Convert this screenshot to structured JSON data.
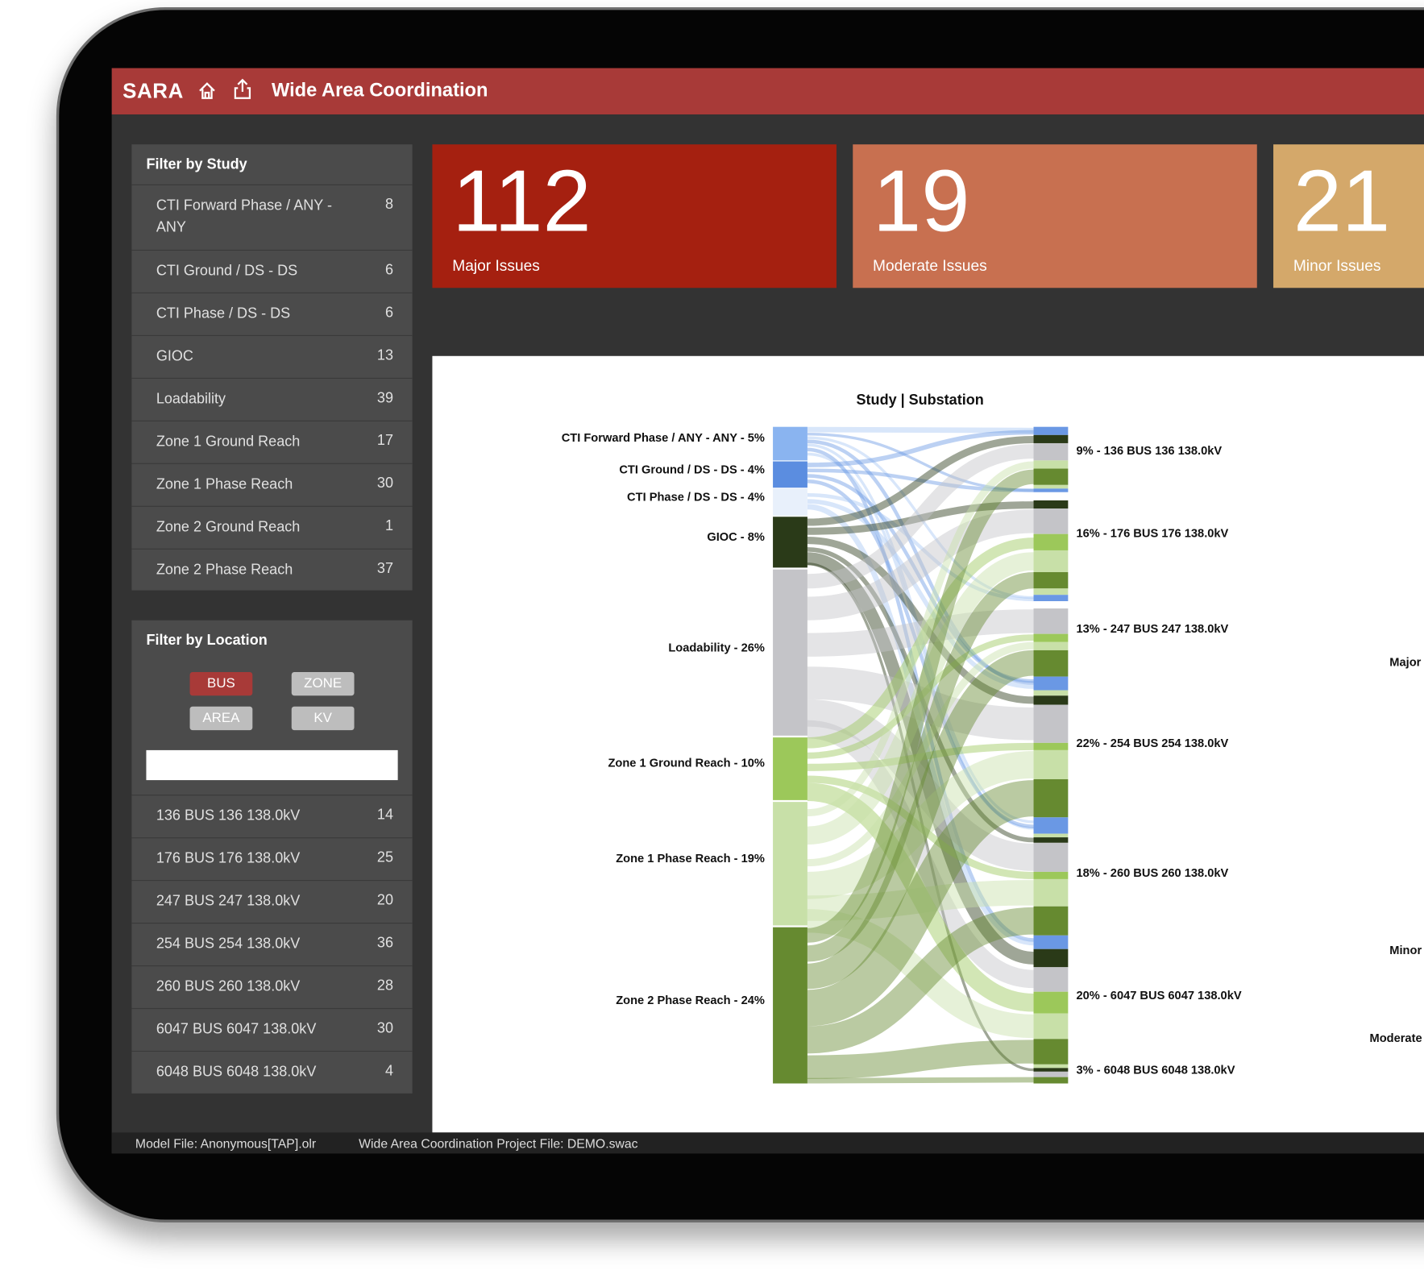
{
  "header": {
    "brand": "SARA",
    "title": "Wide Area Coordination"
  },
  "study_filter": {
    "title": "Filter by Study",
    "items": [
      {
        "label": "CTI Forward Phase / ANY - ANY",
        "count": 8
      },
      {
        "label": "CTI Ground / DS - DS",
        "count": 6
      },
      {
        "label": "CTI Phase / DS - DS",
        "count": 6
      },
      {
        "label": "GIOC",
        "count": 13
      },
      {
        "label": "Loadability",
        "count": 39
      },
      {
        "label": "Zone 1 Ground Reach",
        "count": 17
      },
      {
        "label": "Zone 1 Phase Reach",
        "count": 30
      },
      {
        "label": "Zone 2 Ground Reach",
        "count": 1
      },
      {
        "label": "Zone 2 Phase Reach",
        "count": 37
      }
    ]
  },
  "location_filter": {
    "title": "Filter by Location",
    "buttons": [
      "BUS",
      "ZONE",
      "AREA",
      "KV"
    ],
    "items": [
      {
        "label": "136 BUS 136 138.0kV",
        "count": 14
      },
      {
        "label": "176 BUS 176 138.0kV",
        "count": 25
      },
      {
        "label": "247 BUS 247 138.0kV",
        "count": 20
      },
      {
        "label": "254 BUS 254 138.0kV",
        "count": 36
      },
      {
        "label": "260 BUS 260 138.0kV",
        "count": 28
      },
      {
        "label": "6047 BUS 6047 138.0kV",
        "count": 30
      },
      {
        "label": "6048 BUS 6048 138.0kV",
        "count": 4
      }
    ]
  },
  "cards": [
    {
      "value": 112,
      "label": "Major Issues"
    },
    {
      "value": 19,
      "label": "Moderate Issues"
    },
    {
      "value": 21,
      "label": "Minor Issues"
    }
  ],
  "sankey": {
    "title": "Study | Substation",
    "left_labels": [
      "CTI Forward Phase / ANY - ANY - 5%",
      "CTI Ground / DS - DS - 4%",
      "CTI Phase / DS - DS - 4%",
      "GIOC - 8%",
      "Loadability - 26%",
      "Zone 1 Ground Reach - 10%",
      "Zone 1 Phase Reach - 19%",
      "Zone 2 Phase Reach - 24%"
    ],
    "right_labels": [
      "9% - 136 BUS 136 138.0kV",
      "16% - 176 BUS 176 138.0kV",
      "13% - 247 BUS 247 138.0kV",
      "22% - 254 BUS 254 138.0kV",
      "18% - 260 BUS 260 138.0kV",
      "20% - 6047 BUS 6047 138.0kV",
      "3% - 6048 BUS 6048 138.0kV"
    ],
    "side_labels": [
      "Major",
      "Minor",
      "Moderate"
    ]
  },
  "footer": {
    "model_file": "Model File: Anonymous[TAP].olr",
    "project_file": "Wide Area Coordination Project File: DEMO.swac"
  }
}
